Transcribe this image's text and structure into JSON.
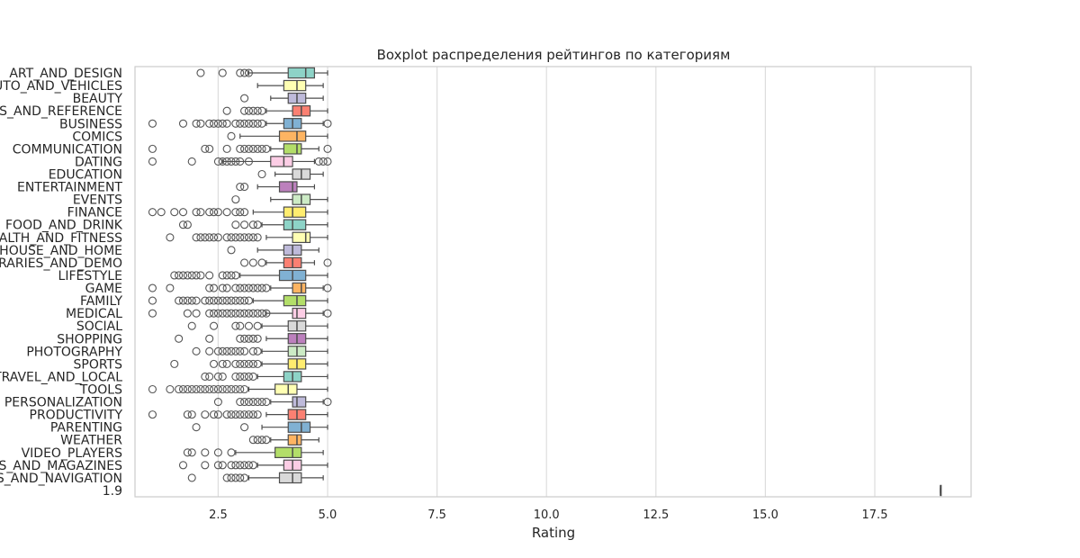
{
  "chart_data": {
    "type": "boxplot",
    "orientation": "horizontal",
    "title": "Boxplot распределения рейтингов по категориям",
    "xlabel": "Rating",
    "ylabel": "",
    "xlim": [
      0.6,
      19.7
    ],
    "xticks": [
      2.5,
      5.0,
      7.5,
      10.0,
      12.5,
      15.0,
      17.5
    ],
    "xtick_labels": [
      "2.5",
      "5.0",
      "7.5",
      "10.0",
      "12.5",
      "15.0",
      "17.5"
    ],
    "grid": "vertical",
    "palette": [
      "#8dd3c7",
      "#ffffb3",
      "#bebada",
      "#fb8072",
      "#80b1d3",
      "#fdb462",
      "#b3de69",
      "#fccde5",
      "#d9d9d9",
      "#bc80bd",
      "#ccebc5",
      "#ffed6f"
    ],
    "categories": [
      {
        "name": "ART_AND_DESIGN",
        "whisker_low": 3.2,
        "q1": 4.1,
        "median": 4.5,
        "q3": 4.7,
        "whisker_high": 5.0,
        "outliers": [
          2.1,
          2.6,
          3.0,
          3.1,
          3.2
        ]
      },
      {
        "name": "AUTO_AND_VEHICLES",
        "whisker_low": 3.4,
        "q1": 4.0,
        "median": 4.3,
        "q3": 4.5,
        "whisker_high": 4.9,
        "outliers": []
      },
      {
        "name": "BEAUTY",
        "whisker_low": 3.7,
        "q1": 4.1,
        "median": 4.3,
        "q3": 4.5,
        "whisker_high": 4.9,
        "outliers": [
          3.1
        ]
      },
      {
        "name": "BOOKS_AND_REFERENCE",
        "whisker_low": 3.6,
        "q1": 4.2,
        "median": 4.4,
        "q3": 4.6,
        "whisker_high": 5.0,
        "outliers": [
          2.7,
          3.1,
          3.2,
          3.3,
          3.4,
          3.5
        ]
      },
      {
        "name": "BUSINESS",
        "whisker_low": 3.6,
        "q1": 4.0,
        "median": 4.2,
        "q3": 4.4,
        "whisker_high": 4.9,
        "outliers": [
          1.0,
          1.7,
          2.0,
          2.1,
          2.3,
          2.4,
          2.5,
          2.6,
          2.7,
          2.9,
          3.0,
          3.1,
          3.2,
          3.3,
          3.4,
          3.5,
          5.0
        ]
      },
      {
        "name": "COMICS",
        "whisker_low": 3.0,
        "q1": 3.9,
        "median": 4.3,
        "q3": 4.5,
        "whisker_high": 5.0,
        "outliers": [
          2.8
        ]
      },
      {
        "name": "COMMUNICATION",
        "whisker_low": 3.7,
        "q1": 4.0,
        "median": 4.3,
        "q3": 4.4,
        "whisker_high": 4.8,
        "outliers": [
          1.0,
          2.2,
          2.3,
          2.7,
          3.0,
          3.1,
          3.2,
          3.3,
          3.4,
          3.5,
          3.6,
          5.0
        ]
      },
      {
        "name": "DATING",
        "whisker_low": 2.6,
        "q1": 3.7,
        "median": 4.0,
        "q3": 4.2,
        "whisker_high": 4.7,
        "outliers": [
          1.0,
          1.9,
          2.5,
          2.6,
          2.7,
          2.8,
          2.9,
          3.0,
          3.2,
          4.8,
          4.9,
          5.0
        ]
      },
      {
        "name": "EDUCATION",
        "whisker_low": 3.8,
        "q1": 4.2,
        "median": 4.4,
        "q3": 4.6,
        "whisker_high": 4.9,
        "outliers": [
          3.5
        ]
      },
      {
        "name": "ENTERTAINMENT",
        "whisker_low": 3.4,
        "q1": 3.9,
        "median": 4.2,
        "q3": 4.3,
        "whisker_high": 4.7,
        "outliers": [
          3.0,
          3.1
        ]
      },
      {
        "name": "EVENTS",
        "whisker_low": 3.7,
        "q1": 4.2,
        "median": 4.4,
        "q3": 4.6,
        "whisker_high": 5.0,
        "outliers": [
          2.9
        ]
      },
      {
        "name": "FINANCE",
        "whisker_low": 3.3,
        "q1": 4.0,
        "median": 4.2,
        "q3": 4.5,
        "whisker_high": 5.0,
        "outliers": [
          1.0,
          1.2,
          1.5,
          1.7,
          2.0,
          2.1,
          2.3,
          2.4,
          2.5,
          2.7,
          2.9,
          3.0,
          3.1
        ]
      },
      {
        "name": "FOOD_AND_DRINK",
        "whisker_low": 3.5,
        "q1": 4.0,
        "median": 4.2,
        "q3": 4.5,
        "whisker_high": 5.0,
        "outliers": [
          1.7,
          1.8,
          2.9,
          3.1,
          3.3,
          3.4
        ]
      },
      {
        "name": "HEALTH_AND_FITNESS",
        "whisker_low": 3.6,
        "q1": 4.2,
        "median": 4.5,
        "q3": 4.6,
        "whisker_high": 5.0,
        "outliers": [
          1.4,
          2.0,
          2.1,
          2.2,
          2.3,
          2.4,
          2.5,
          2.7,
          2.8,
          2.9,
          3.0,
          3.1,
          3.2,
          3.3,
          3.4
        ]
      },
      {
        "name": "HOUSE_AND_HOME",
        "whisker_low": 3.4,
        "q1": 4.0,
        "median": 4.2,
        "q3": 4.4,
        "whisker_high": 4.8,
        "outliers": [
          2.8
        ]
      },
      {
        "name": "LIBRARIES_AND_DEMO",
        "whisker_low": 3.6,
        "q1": 4.0,
        "median": 4.2,
        "q3": 4.4,
        "whisker_high": 4.7,
        "outliers": [
          3.1,
          3.3,
          3.5,
          5.0
        ]
      },
      {
        "name": "LIFESTYLE",
        "whisker_low": 3.0,
        "q1": 3.9,
        "median": 4.2,
        "q3": 4.5,
        "whisker_high": 5.0,
        "outliers": [
          1.5,
          1.6,
          1.7,
          1.8,
          1.9,
          2.0,
          2.1,
          2.3,
          2.6,
          2.7,
          2.8,
          2.9
        ]
      },
      {
        "name": "GAME",
        "whisker_low": 3.7,
        "q1": 4.2,
        "median": 4.4,
        "q3": 4.5,
        "whisker_high": 4.9,
        "outliers": [
          1.0,
          1.4,
          2.3,
          2.4,
          2.6,
          2.7,
          2.9,
          3.0,
          3.1,
          3.2,
          3.3,
          3.4,
          3.5,
          3.6,
          5.0
        ]
      },
      {
        "name": "FAMILY",
        "whisker_low": 3.3,
        "q1": 4.0,
        "median": 4.3,
        "q3": 4.5,
        "whisker_high": 5.0,
        "outliers": [
          1.0,
          1.6,
          1.7,
          1.8,
          1.9,
          2.0,
          2.2,
          2.3,
          2.4,
          2.5,
          2.6,
          2.7,
          2.8,
          2.9,
          3.0,
          3.1,
          3.2
        ]
      },
      {
        "name": "MEDICAL",
        "whisker_low": 3.6,
        "q1": 4.2,
        "median": 4.3,
        "q3": 4.5,
        "whisker_high": 4.9,
        "outliers": [
          1.0,
          1.8,
          2.0,
          2.3,
          2.4,
          2.5,
          2.6,
          2.7,
          2.8,
          2.9,
          3.0,
          3.1,
          3.2,
          3.3,
          3.4,
          3.5,
          3.6,
          5.0
        ]
      },
      {
        "name": "SOCIAL",
        "whisker_low": 3.5,
        "q1": 4.1,
        "median": 4.3,
        "q3": 4.5,
        "whisker_high": 5.0,
        "outliers": [
          1.9,
          2.4,
          2.9,
          3.0,
          3.2,
          3.4
        ]
      },
      {
        "name": "SHOPPING",
        "whisker_low": 3.6,
        "q1": 4.1,
        "median": 4.3,
        "q3": 4.5,
        "whisker_high": 5.0,
        "outliers": [
          1.6,
          2.3,
          3.0,
          3.1,
          3.2,
          3.3,
          3.4
        ]
      },
      {
        "name": "PHOTOGRAPHY",
        "whisker_low": 3.5,
        "q1": 4.1,
        "median": 4.3,
        "q3": 4.5,
        "whisker_high": 5.0,
        "outliers": [
          2.0,
          2.3,
          2.5,
          2.6,
          2.7,
          2.8,
          2.9,
          3.0,
          3.1,
          3.3,
          3.4
        ]
      },
      {
        "name": "SPORTS",
        "whisker_low": 3.5,
        "q1": 4.1,
        "median": 4.3,
        "q3": 4.5,
        "whisker_high": 5.0,
        "outliers": [
          1.5,
          2.4,
          2.6,
          2.7,
          2.9,
          3.0,
          3.1,
          3.2,
          3.3,
          3.4
        ]
      },
      {
        "name": "TRAVEL_AND_LOCAL",
        "whisker_low": 3.4,
        "q1": 4.0,
        "median": 4.2,
        "q3": 4.4,
        "whisker_high": 5.0,
        "outliers": [
          2.2,
          2.3,
          2.5,
          2.6,
          2.9,
          3.0,
          3.1,
          3.2,
          3.3
        ]
      },
      {
        "name": "TOOLS",
        "whisker_low": 3.2,
        "q1": 3.8,
        "median": 4.1,
        "q3": 4.3,
        "whisker_high": 5.0,
        "outliers": [
          1.0,
          1.4,
          1.6,
          1.7,
          1.8,
          1.9,
          2.0,
          2.1,
          2.2,
          2.3,
          2.4,
          2.5,
          2.6,
          2.7,
          2.8,
          2.9,
          3.0,
          3.1
        ]
      },
      {
        "name": "PERSONALIZATION",
        "whisker_low": 3.7,
        "q1": 4.2,
        "median": 4.3,
        "q3": 4.5,
        "whisker_high": 4.9,
        "outliers": [
          2.5,
          3.0,
          3.1,
          3.2,
          3.3,
          3.4,
          3.5,
          3.6,
          5.0
        ]
      },
      {
        "name": "PRODUCTIVITY",
        "whisker_low": 3.6,
        "q1": 4.1,
        "median": 4.3,
        "q3": 4.5,
        "whisker_high": 5.0,
        "outliers": [
          1.0,
          1.8,
          1.9,
          2.2,
          2.4,
          2.5,
          2.7,
          2.8,
          2.9,
          3.0,
          3.1,
          3.2,
          3.3,
          3.4
        ]
      },
      {
        "name": "PARENTING",
        "whisker_low": 3.5,
        "q1": 4.1,
        "median": 4.4,
        "q3": 4.6,
        "whisker_high": 5.0,
        "outliers": [
          2.0,
          3.1
        ]
      },
      {
        "name": "WEATHER",
        "whisker_low": 3.7,
        "q1": 4.1,
        "median": 4.3,
        "q3": 4.4,
        "whisker_high": 4.8,
        "outliers": [
          3.3,
          3.4,
          3.5,
          3.6
        ]
      },
      {
        "name": "VIDEO_PLAYERS",
        "whisker_low": 2.9,
        "q1": 3.8,
        "median": 4.2,
        "q3": 4.4,
        "whisker_high": 4.9,
        "outliers": [
          1.8,
          1.9,
          2.2,
          2.5,
          2.8
        ]
      },
      {
        "name": "NEWS_AND_MAGAZINES",
        "whisker_low": 3.4,
        "q1": 4.0,
        "median": 4.2,
        "q3": 4.4,
        "whisker_high": 5.0,
        "outliers": [
          1.7,
          2.2,
          2.5,
          2.6,
          2.8,
          2.9,
          3.0,
          3.1,
          3.2,
          3.3
        ]
      },
      {
        "name": "MAPS_AND_NAVIGATION",
        "whisker_low": 3.2,
        "q1": 3.9,
        "median": 4.2,
        "q3": 4.4,
        "whisker_high": 4.9,
        "outliers": [
          1.9,
          2.7,
          2.8,
          2.9,
          3.0,
          3.1
        ]
      },
      {
        "name": "1.9",
        "whisker_low": 19.0,
        "q1": 19.0,
        "median": 19.0,
        "q3": 19.0,
        "whisker_high": 19.0,
        "outliers": []
      }
    ]
  }
}
